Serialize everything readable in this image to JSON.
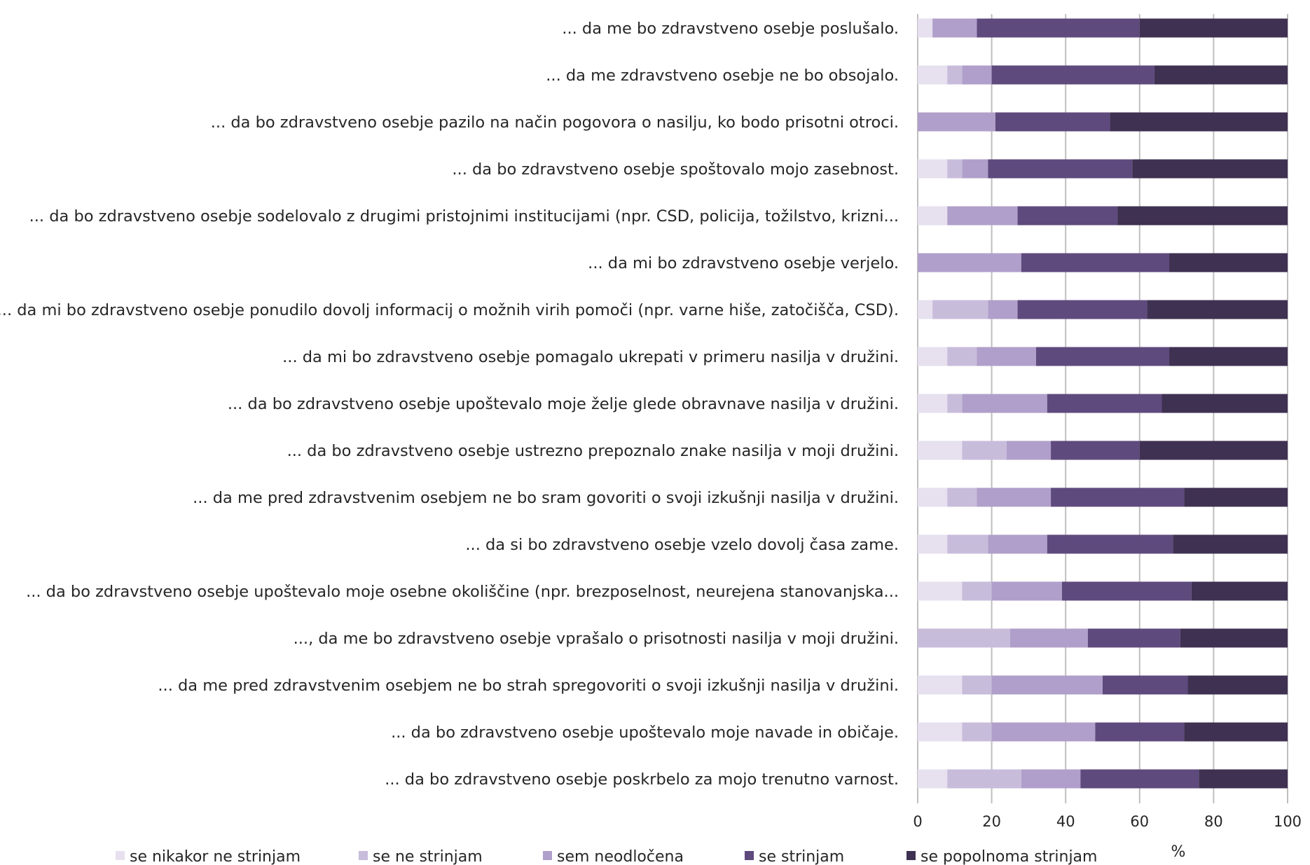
{
  "chart_data": {
    "type": "bar",
    "orientation": "horizontal",
    "stacked": true,
    "categories": [
      "... da me bo zdravstveno osebje poslušalo.",
      "... da me zdravstveno osebje ne bo obsojalo.",
      "... da bo zdravstveno osebje pazilo na način pogovora o nasilju, ko bodo prisotni otroci.",
      "... da bo zdravstveno osebje spoštovalo mojo zasebnost.",
      "... da bo zdravstveno osebje sodelovalo z drugimi pristojnimi institucijami (npr. CSD, policija, tožilstvo, krizni...",
      "... da mi bo zdravstveno osebje verjelo.",
      "... da mi bo zdravstveno osebje ponudilo dovolj informacij o možnih virih pomoči (npr. varne hiše, zatočišča, CSD).",
      "... da mi bo zdravstveno osebje pomagalo ukrepati v primeru nasilja v družini.",
      "... da bo zdravstveno osebje upoštevalo moje želje glede obravnave nasilja v družini.",
      "... da bo zdravstveno osebje ustrezno prepoznalo znake nasilja v moji družini.",
      "... da me pred zdravstvenim osebjem ne bo sram govoriti o svoji izkušnji nasilja v družini.",
      "... da si bo zdravstveno osebje vzelo dovolj časa zame.",
      "... da bo zdravstveno osebje upoštevalo moje osebne okoliščine (npr. brezposelnost, neurejena stanovanjska...",
      "..., da me bo zdravstveno osebje vprašalo o prisotnosti nasilja v moji družini.",
      "... da me pred zdravstvenim osebjem ne bo strah spregovoriti o svoji izkušnji nasilja v družini.",
      "... da bo zdravstveno osebje upoštevalo moje navade in običaje.",
      "... da bo zdravstveno osebje poskrbelo za mojo trenutno varnost."
    ],
    "series": [
      {
        "name": "se nikakor ne strinjam",
        "color": "#e6e0ef",
        "values": [
          4,
          8,
          0,
          8,
          8,
          0,
          4,
          8,
          8,
          12,
          8,
          8,
          12,
          0,
          12,
          12,
          8
        ]
      },
      {
        "name": "se ne strinjam",
        "color": "#c8bcdb",
        "values": [
          0,
          4,
          0,
          4,
          0,
          0,
          15,
          8,
          4,
          12,
          8,
          11,
          8,
          25,
          8,
          8,
          20
        ]
      },
      {
        "name": "sem neodločena",
        "color": "#b09fca",
        "values": [
          12,
          8,
          21,
          7,
          19,
          28,
          8,
          16,
          23,
          12,
          20,
          16,
          19,
          21,
          30,
          28,
          16
        ]
      },
      {
        "name": "se strinjam",
        "color": "#5f4a7e",
        "values": [
          44,
          44,
          31,
          39,
          27,
          40,
          35,
          36,
          31,
          24,
          36,
          34,
          35,
          25,
          23,
          24,
          32
        ]
      },
      {
        "name": "se popolnoma strinjam",
        "color": "#3f3151",
        "values": [
          40,
          36,
          48,
          42,
          46,
          32,
          38,
          32,
          34,
          40,
          28,
          31,
          26,
          29,
          27,
          28,
          24
        ]
      }
    ],
    "xlim": [
      0,
      100
    ],
    "xticks": [
      "0",
      "20",
      "40",
      "60",
      "80",
      "100"
    ],
    "xlabel": "%",
    "grid": true,
    "legend_position": "bottom"
  }
}
